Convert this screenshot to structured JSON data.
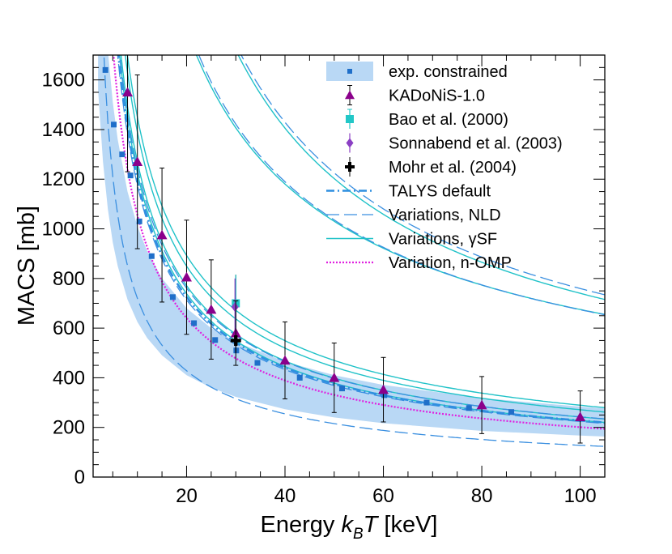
{
  "chart_data": {
    "type": "line",
    "xlabel": "Energy k_B T [keV]",
    "xlabel_parts": {
      "pre": "Energy ",
      "var": "k",
      "sub": "B",
      "var2": "T",
      "post": " [keV]"
    },
    "ylabel": "MACS [mb]",
    "xlim": [
      1,
      105
    ],
    "ylim": [
      0,
      1700
    ],
    "xticks": [
      20,
      40,
      60,
      80,
      100
    ],
    "yticks": [
      0,
      200,
      400,
      600,
      800,
      1000,
      1200,
      1400,
      1600
    ],
    "xtick_labels": [
      "20",
      "40",
      "60",
      "80",
      "100"
    ],
    "ytick_labels": [
      "0",
      "200",
      "400",
      "600",
      "800",
      "1000",
      "1200",
      "1400",
      "1600"
    ],
    "legend_position": "top-right",
    "legend": [
      {
        "key": "exp",
        "label": "exp. constrained"
      },
      {
        "key": "kadonis",
        "label": "KADoNiS-1.0"
      },
      {
        "key": "bao",
        "label": "Bao et al. (2000)"
      },
      {
        "key": "sonnabend",
        "label": "Sonnabend et al. (2003)"
      },
      {
        "key": "mohr",
        "label": "Mohr et al. (2004)"
      },
      {
        "key": "talys",
        "label": "TALYS default"
      },
      {
        "key": "nld",
        "label": "Variations, NLD"
      },
      {
        "key": "gsf",
        "label": "Variations, γSF"
      },
      {
        "key": "omp",
        "label": "Variation, n-OMP"
      }
    ],
    "colors": {
      "band": "#b9d8f5",
      "exp_marker": "#1f6fc9",
      "kadonis": "#8b008b",
      "bao": "#22c7c7",
      "sonnabend": "#8b3fc4",
      "mohr": "#000000",
      "talys": "#2f8fe0",
      "nld": "#3a8fe0",
      "gsf": "#20c2c8",
      "omp": "#e020e0",
      "errorbar": "#000000"
    },
    "band": {
      "x": [
        2,
        3,
        4,
        5,
        6,
        8,
        10,
        12,
        15,
        20,
        25,
        30,
        40,
        50,
        60,
        80,
        100,
        105
      ],
      "lower": [
        1560,
        1270,
        1080,
        945,
        850,
        715,
        625,
        560,
        490,
        410,
        360,
        323,
        273,
        240,
        217,
        186,
        167,
        163
      ],
      "upper": [
        2500,
        2010,
        1720,
        1510,
        1360,
        1150,
        1010,
        910,
        800,
        680,
        600,
        545,
        465,
        410,
        371,
        318,
        284,
        277
      ]
    },
    "exp_constrained": {
      "x": [
        3.5,
        5.2,
        6.9,
        8.6,
        10.4,
        12.9,
        17.2,
        21.5,
        25.8,
        30.1,
        34.4,
        43,
        51.6,
        60.2,
        68.8,
        77.4,
        86
      ],
      "y": [
        1640,
        1420,
        1300,
        1215,
        1030,
        890,
        725,
        620,
        552,
        510,
        460,
        400,
        357,
        330,
        300,
        278,
        262
      ]
    },
    "kadonis": {
      "x": [
        8,
        10,
        15,
        20,
        25,
        30,
        40,
        50,
        60,
        80,
        100
      ],
      "y": [
        1550,
        1270,
        975,
        805,
        675,
        580,
        470,
        400,
        352,
        290,
        242
      ],
      "err": [
        320,
        350,
        270,
        230,
        200,
        130,
        155,
        140,
        130,
        115,
        105
      ]
    },
    "bao": {
      "x": [
        30
      ],
      "y": [
        700
      ],
      "err": [
        115
      ]
    },
    "sonnabend": {
      "x": [
        30
      ],
      "y": [
        685
      ],
      "err": [
        115
      ]
    },
    "mohr": {
      "x": [
        30
      ],
      "y": [
        550
      ],
      "err": [
        50
      ]
    },
    "talys": {
      "n": 0.72,
      "a": 1195
    },
    "nld_variations": [
      {
        "n": 0.69,
        "a": 3720
      },
      {
        "n": 0.62,
        "a": 2810
      },
      {
        "n": 0.71,
        "a": 1245
      },
      {
        "n": 0.72,
        "a": 1175
      },
      {
        "n": 0.75,
        "a": 720
      }
    ],
    "gsf_variations": [
      {
        "n": 0.7,
        "a": 3710
      },
      {
        "n": 0.61,
        "a": 2750
      },
      {
        "n": 0.7,
        "a": 1450
      },
      {
        "n": 0.71,
        "a": 1390
      },
      {
        "n": 0.72,
        "a": 1270
      },
      {
        "n": 0.73,
        "a": 1225
      }
    ],
    "omp": {
      "n": 0.72,
      "a": 1055
    }
  }
}
